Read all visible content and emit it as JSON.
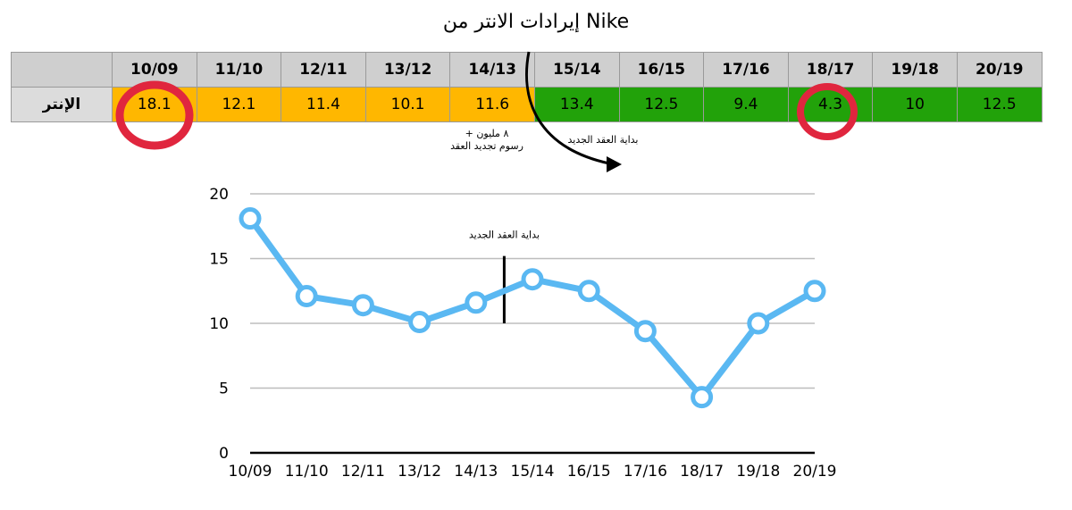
{
  "title": "إيرادات الانتر من Nike",
  "table": {
    "row_label": "الإنتر",
    "headers": [
      "10/09",
      "11/10",
      "12/11",
      "13/12",
      "14/13",
      "15/14",
      "16/15",
      "17/16",
      "18/17",
      "19/18",
      "20/19"
    ],
    "values": [
      "18.1",
      "12.1",
      "11.4",
      "10.1",
      "11.6",
      "13.4",
      "12.5",
      "9.4",
      "4.3",
      "10",
      "12.5"
    ],
    "old_contract_color": "#ffb700",
    "new_contract_color": "#22a20a",
    "highlight_color": "#e0263e"
  },
  "annotations": {
    "renewal_fee_line1": "+ ٨ مليون",
    "renewal_fee_line2": "رسوم تجديد العقد",
    "new_contract_top": "بداية العقد الجديد"
  },
  "chart_data": {
    "type": "line",
    "categories": [
      "10/09",
      "11/10",
      "12/11",
      "13/12",
      "14/13",
      "15/14",
      "16/15",
      "17/16",
      "18/17",
      "19/18",
      "20/19"
    ],
    "values": [
      18.1,
      12.1,
      11.4,
      10.1,
      11.6,
      13.4,
      12.5,
      9.4,
      4.3,
      10,
      12.5
    ],
    "ylim": [
      0,
      20
    ],
    "yticks": [
      "0",
      "5",
      "10",
      "15",
      "20"
    ],
    "grid": true,
    "line_color": "#5ab8f2",
    "annotation": {
      "text": "بداية العقد الجديد",
      "between": [
        "14/13",
        "15/14"
      ]
    }
  }
}
